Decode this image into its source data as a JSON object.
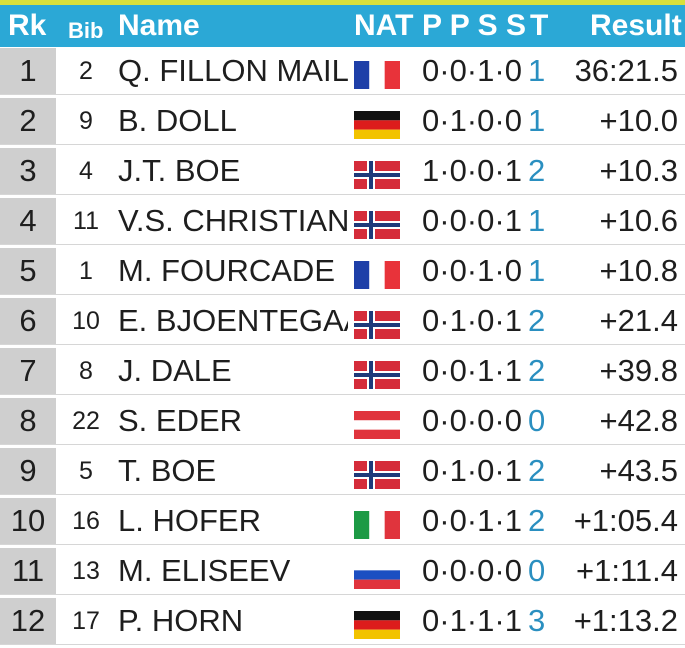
{
  "header": {
    "rk": "Rk",
    "bib": "Bib",
    "name": "Name",
    "nat": "NAT",
    "shoot": "P P S S",
    "total": "T",
    "result": "Result"
  },
  "colors": {
    "header_bg": "#2ba8d6",
    "top_strip": "#d8e03a",
    "rank_bg": "#cfcfcf",
    "total_text": "#2a8fc0"
  },
  "rows": [
    {
      "rk": "1",
      "bib": "2",
      "name": "Q. FILLON MAILL",
      "flag": "fra",
      "shoot": "0·0·1·0",
      "total": "1",
      "result": "36:21.5"
    },
    {
      "rk": "2",
      "bib": "9",
      "name": "B. DOLL",
      "flag": "ger",
      "shoot": "0·1·0·0",
      "total": "1",
      "result": "+10.0"
    },
    {
      "rk": "3",
      "bib": "4",
      "name": "J.T. BOE",
      "flag": "nor",
      "shoot": "1·0·0·1",
      "total": "2",
      "result": "+10.3"
    },
    {
      "rk": "4",
      "bib": "11",
      "name": "V.S. CHRISTIANS",
      "flag": "nor",
      "shoot": "0·0·0·1",
      "total": "1",
      "result": "+10.6"
    },
    {
      "rk": "5",
      "bib": "1",
      "name": "M. FOURCADE",
      "flag": "fra",
      "shoot": "0·0·1·0",
      "total": "1",
      "result": "+10.8"
    },
    {
      "rk": "6",
      "bib": "10",
      "name": "E. BJOENTEGAAR",
      "flag": "nor",
      "shoot": "0·1·0·1",
      "total": "2",
      "result": "+21.4"
    },
    {
      "rk": "7",
      "bib": "8",
      "name": "J. DALE",
      "flag": "nor",
      "shoot": "0·0·1·1",
      "total": "2",
      "result": "+39.8"
    },
    {
      "rk": "8",
      "bib": "22",
      "name": "S. EDER",
      "flag": "aut",
      "shoot": "0·0·0·0",
      "total": "0",
      "result": "+42.8"
    },
    {
      "rk": "9",
      "bib": "5",
      "name": "T. BOE",
      "flag": "nor",
      "shoot": "0·1·0·1",
      "total": "2",
      "result": "+43.5"
    },
    {
      "rk": "10",
      "bib": "16",
      "name": "L. HOFER",
      "flag": "ita",
      "shoot": "0·0·1·1",
      "total": "2",
      "result": "+1:05.4"
    },
    {
      "rk": "11",
      "bib": "13",
      "name": "M. ELISEEV",
      "flag": "rus",
      "shoot": "0·0·0·0",
      "total": "0",
      "result": "+1:11.4"
    },
    {
      "rk": "12",
      "bib": "17",
      "name": "P. HORN",
      "flag": "ger",
      "shoot": "0·1·1·1",
      "total": "3",
      "result": "+1:13.2"
    }
  ]
}
